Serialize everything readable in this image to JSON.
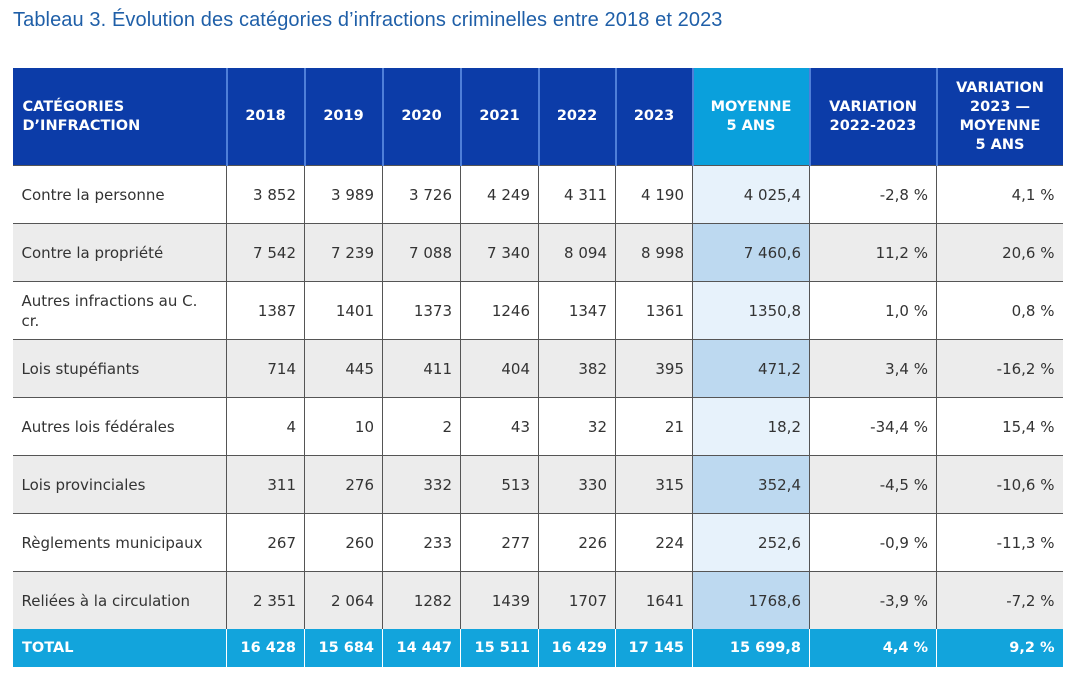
{
  "title": "Tableau 3. Évolution des catégories d’infractions criminelles entre 2018 et 2023",
  "colors": {
    "header": "#0c3ca8",
    "average_header": "#0aa0dc",
    "total_row": "#12a4dc",
    "title": "#1f5fa8"
  },
  "headers": [
    "CATÉGORIES D’INFRACTION",
    "2018",
    "2019",
    "2020",
    "2021",
    "2022",
    "2023",
    "MOYENNE 5 ANS",
    "VARIATION 2022-2023",
    "VARIATION 2023 — MOYENNE 5 ANS"
  ],
  "rows": [
    [
      "Contre la personne",
      "3 852",
      "3 989",
      "3 726",
      "4 249",
      "4 311",
      "4 190",
      "4 025,4",
      "-2,8 %",
      "4,1 %"
    ],
    [
      "Contre la propriété",
      "7 542",
      "7 239",
      "7 088",
      "7 340",
      "8 094",
      "8 998",
      "7 460,6",
      "11,2 %",
      "20,6 %"
    ],
    [
      "Autres infractions au C. cr.",
      "1387",
      "1401",
      "1373",
      "1246",
      "1347",
      "1361",
      "1350,8",
      "1,0 %",
      "0,8 %"
    ],
    [
      "Lois stupéfiants",
      "714",
      "445",
      "411",
      "404",
      "382",
      "395",
      "471,2",
      "3,4 %",
      "-16,2 %"
    ],
    [
      "Autres lois fédérales",
      "4",
      "10",
      "2",
      "43",
      "32",
      "21",
      "18,2",
      "-34,4 %",
      "15,4 %"
    ],
    [
      "Lois provinciales",
      "311",
      "276",
      "332",
      "513",
      "330",
      "315",
      "352,4",
      "-4,5 %",
      "-10,6 %"
    ],
    [
      "Règlements municipaux",
      "267",
      "260",
      "233",
      "277",
      "226",
      "224",
      "252,6",
      "-0,9 %",
      "-11,3 %"
    ],
    [
      "Reliées à la circulation",
      "2 351",
      "2 064",
      "1282",
      "1439",
      "1707",
      "1641",
      "1768,6",
      "-3,9 %",
      "-7,2 %"
    ]
  ],
  "total": [
    "TOTAL",
    "16 428",
    "15 684",
    "14 447",
    "15 511",
    "16 429",
    "17 145",
    "15 699,8",
    "4,4 %",
    "9,2 %"
  ]
}
